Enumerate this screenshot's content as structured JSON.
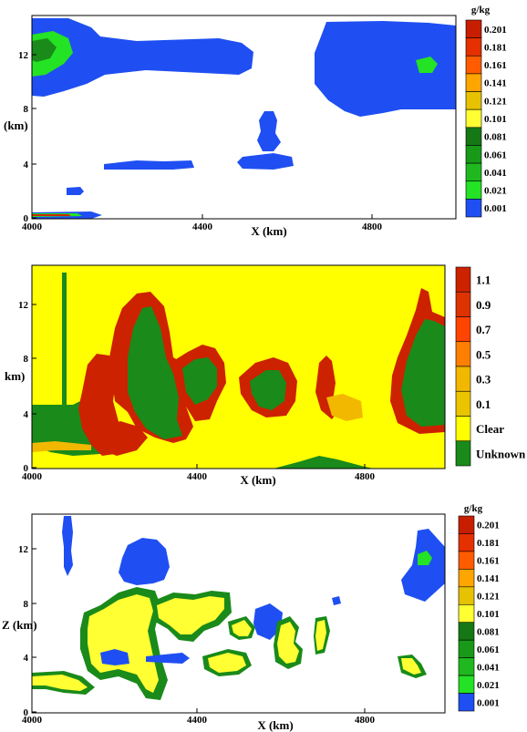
{
  "palette": {
    "blue": "#1f4ff2",
    "lightgreen": "#20e020",
    "green": "#1a8a1a",
    "yellow": "#ffff00",
    "orange": "#ff8c00",
    "red": "#cc2a00",
    "white": "#ffffff"
  },
  "colorbar_mass": {
    "unit": "g/kg",
    "levels": [
      "0.001",
      "0.021",
      "0.041",
      "0.061",
      "0.081",
      "0.101",
      "0.121",
      "0.141",
      "0.161",
      "0.181",
      "0.201"
    ],
    "colors": [
      "#1f4ff2",
      "#24e224",
      "#1fb91f",
      "#189a18",
      "#157815",
      "#ffff33",
      "#e6c200",
      "#ffa500",
      "#ff5c00",
      "#e53000",
      "#c81e00"
    ]
  },
  "colorbar_phase": {
    "labels": [
      "1.1",
      "0.9",
      "0.7",
      "0.5",
      "0.3",
      "0.1",
      "Clear",
      "Unknown"
    ],
    "colors": [
      "#cc2200",
      "#dd3300",
      "#ff4400",
      "#ff7f00",
      "#f2b800",
      "#ebc400",
      "#ffff00",
      "#1a8a1a"
    ]
  },
  "chart_data": [
    {
      "type": "heatmap",
      "xlabel": "X (km)",
      "ylabel": "(km)",
      "xticks": [
        "4000",
        "4400",
        "4800"
      ],
      "yticks": [
        "0",
        "4",
        "8",
        "12"
      ],
      "xlim": [
        4000,
        5000
      ],
      "ylim": [
        0,
        15
      ],
      "regions": [
        {
          "class": "blue",
          "x": [
            4000,
            4260
          ],
          "y": [
            9.2,
            14.2
          ]
        },
        {
          "class": "lightgreen",
          "x": [
            4000,
            4060
          ],
          "y": [
            10.8,
            13.2
          ]
        },
        {
          "class": "blue",
          "x": [
            4260,
            4460
          ],
          "y": [
            10.2,
            13.4
          ]
        },
        {
          "class": "blue",
          "x": [
            4650,
            5000
          ],
          "y": [
            7.2,
            14.6
          ]
        },
        {
          "class": "lightgreen",
          "x": [
            4930,
            4970
          ],
          "y": [
            10.8,
            11.8
          ]
        },
        {
          "class": "blue",
          "x": [
            4540,
            4590
          ],
          "y": [
            4.9,
            7.8
          ]
        },
        {
          "class": "blue",
          "x": [
            4500,
            4640
          ],
          "y": [
            3.6,
            4.8
          ]
        },
        {
          "class": "blue",
          "x": [
            4180,
            4380
          ],
          "y": [
            3.6,
            4.2
          ]
        },
        {
          "class": "blue",
          "x": [
            4040,
            4080
          ],
          "y": [
            1.6,
            2.2
          ]
        },
        {
          "class": "blue",
          "x": [
            4000,
            4120
          ],
          "y": [
            0.2,
            0.6
          ]
        },
        {
          "class": "red",
          "x": [
            4000,
            4080
          ],
          "y": [
            0.25,
            0.45
          ]
        }
      ]
    },
    {
      "type": "heatmap",
      "xlabel": "X (km)",
      "ylabel": "km)",
      "xticks": [
        "4000",
        "4400",
        "4800"
      ],
      "yticks": [
        "0",
        "4",
        "8",
        "12"
      ],
      "xlim": [
        4000,
        5000
      ],
      "ylim": [
        0,
        15
      ],
      "background_class": "Clear",
      "regions": [
        {
          "class": "green",
          "x": [
            4000,
            4140
          ],
          "y": [
            1.2,
            4.5
          ]
        },
        {
          "class": "green",
          "x": [
            4060,
            4070
          ],
          "y": [
            4.5,
            14
          ]
        },
        {
          "class": "red",
          "x": [
            4080,
            4150
          ],
          "y": [
            1,
            7.8
          ]
        },
        {
          "class": "red",
          "x": [
            4140,
            4300
          ],
          "y": [
            2,
            12.8
          ]
        },
        {
          "class": "green",
          "x": [
            4200,
            4290
          ],
          "y": [
            3,
            10.8
          ]
        },
        {
          "class": "red",
          "x": [
            4300,
            4440
          ],
          "y": [
            3,
            9
          ]
        },
        {
          "class": "green",
          "x": [
            4320,
            4420
          ],
          "y": [
            4,
            8
          ]
        },
        {
          "class": "red",
          "x": [
            4480,
            4620
          ],
          "y": [
            3.8,
            8
          ]
        },
        {
          "class": "green",
          "x": [
            4500,
            4600
          ],
          "y": [
            4.5,
            7
          ]
        },
        {
          "class": "red",
          "x": [
            4690,
            4740
          ],
          "y": [
            3.8,
            8.5
          ]
        },
        {
          "class": "red",
          "x": [
            4880,
            5000
          ],
          "y": [
            3,
            13.3
          ]
        },
        {
          "class": "green",
          "x": [
            4900,
            5000
          ],
          "y": [
            3,
            11
          ]
        },
        {
          "class": "green",
          "x": [
            4620,
            4760
          ],
          "y": [
            0,
            1
          ]
        }
      ]
    },
    {
      "type": "heatmap",
      "xlabel": "X (km)",
      "ylabel": "Z (km)",
      "xticks": [
        "4000",
        "4400",
        "4800"
      ],
      "yticks": [
        "0",
        "4",
        "8",
        "12"
      ],
      "xlim": [
        4000,
        5000
      ],
      "ylim": [
        0,
        15
      ],
      "regions": [
        {
          "class": "blue",
          "x": [
            4080,
            4100
          ],
          "y": [
            10.5,
            14
          ]
        },
        {
          "class": "blue",
          "x": [
            4230,
            4340
          ],
          "y": [
            10,
            13.6
          ]
        },
        {
          "class": "blue",
          "x": [
            4920,
            5000
          ],
          "y": [
            8.5,
            13
          ]
        },
        {
          "class": "lightgreen",
          "x": [
            4930,
            4960
          ],
          "y": [
            10.8,
            11.8
          ]
        },
        {
          "class": "yellow",
          "x": [
            4130,
            4300
          ],
          "y": [
            1.8,
            9
          ]
        },
        {
          "class": "yellow",
          "x": [
            4300,
            4440
          ],
          "y": [
            5,
            8
          ]
        },
        {
          "class": "yellow",
          "x": [
            4000,
            4160
          ],
          "y": [
            1.6,
            3
          ]
        },
        {
          "class": "yellow",
          "x": [
            4460,
            4560
          ],
          "y": [
            5,
            6.5
          ]
        },
        {
          "class": "blue",
          "x": [
            4540,
            4620
          ],
          "y": [
            4,
            7.5
          ]
        },
        {
          "class": "yellow",
          "x": [
            4600,
            4700
          ],
          "y": [
            3,
            7
          ]
        },
        {
          "class": "yellow",
          "x": [
            4700,
            4760
          ],
          "y": [
            4,
            6
          ]
        },
        {
          "class": "yellow",
          "x": [
            4920,
            4980
          ],
          "y": [
            2.8,
            4
          ]
        }
      ]
    }
  ]
}
